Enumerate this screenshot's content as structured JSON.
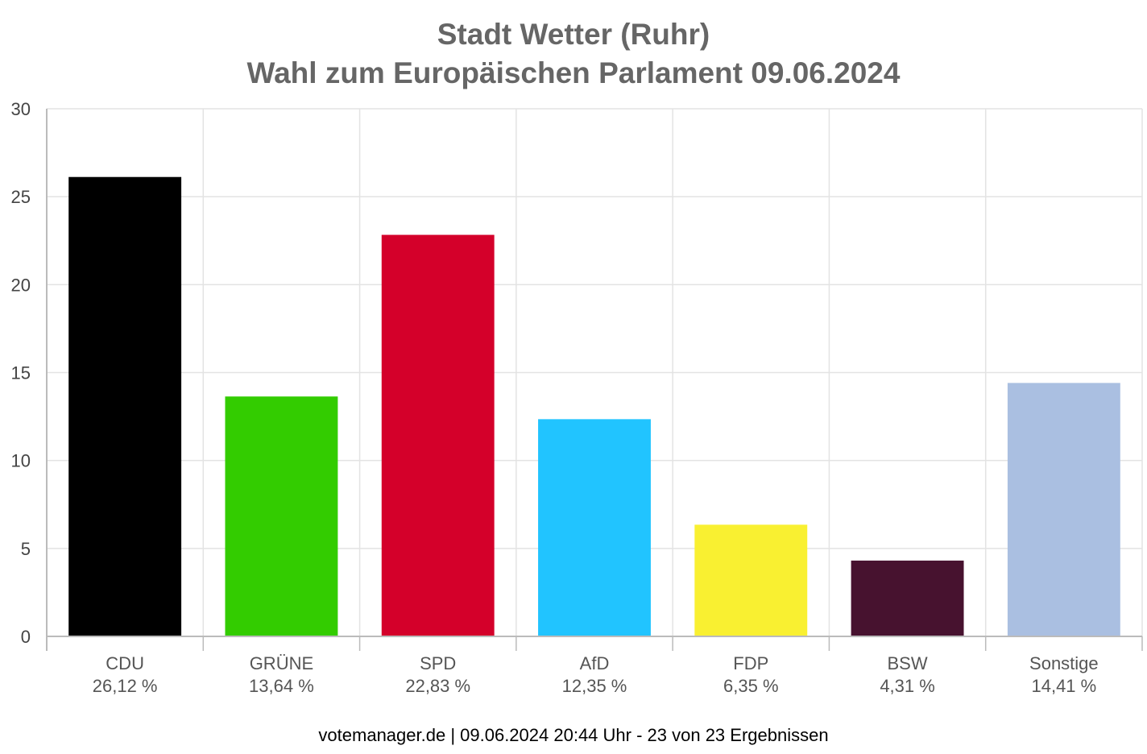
{
  "chart_data": {
    "type": "bar",
    "title": "Stadt Wetter (Ruhr)",
    "subtitle": "Wahl zum Europäischen Parlament 09.06.2024",
    "categories": [
      "CDU",
      "GRÜNE",
      "SPD",
      "AfD",
      "FDP",
      "BSW",
      "Sonstige"
    ],
    "values": [
      26.12,
      13.64,
      22.83,
      12.35,
      6.35,
      4.31,
      14.41
    ],
    "value_labels": [
      "26,12 %",
      "13,64 %",
      "22,83 %",
      "12,35 %",
      "6,35 %",
      "4,31 %",
      "14,41 %"
    ],
    "colors": [
      "#000000",
      "#33cc00",
      "#d4002a",
      "#21c4ff",
      "#f9f031",
      "#47122f",
      "#aabfe1"
    ],
    "ylim": [
      0,
      30
    ],
    "yticks": [
      0,
      5,
      10,
      15,
      20,
      25,
      30
    ],
    "grid": true,
    "legend": "none"
  },
  "footer": "votemanager.de | 09.06.2024 20:44 Uhr - 23 von 23 Ergebnissen"
}
